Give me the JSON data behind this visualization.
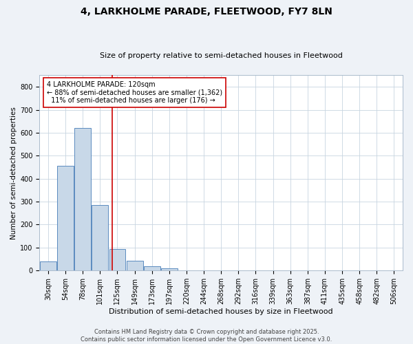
{
  "title": "4, LARKHOLME PARADE, FLEETWOOD, FY7 8LN",
  "subtitle": "Size of property relative to semi-detached houses in Fleetwood",
  "xlabel": "Distribution of semi-detached houses by size in Fleetwood",
  "ylabel": "Number of semi-detached properties",
  "categories": [
    "30sqm",
    "54sqm",
    "78sqm",
    "101sqm",
    "125sqm",
    "149sqm",
    "173sqm",
    "197sqm",
    "220sqm",
    "244sqm",
    "268sqm",
    "292sqm",
    "316sqm",
    "339sqm",
    "363sqm",
    "387sqm",
    "411sqm",
    "435sqm",
    "458sqm",
    "482sqm",
    "506sqm"
  ],
  "values": [
    40,
    455,
    620,
    285,
    93,
    42,
    18,
    8,
    0,
    0,
    0,
    0,
    0,
    0,
    0,
    0,
    0,
    0,
    0,
    0,
    0
  ],
  "bar_color": "#c8d8e8",
  "bar_edge_color": "#5a8abf",
  "vline_x": 3.72,
  "vline_color": "#cc0000",
  "annotation_text": "4 LARKHOLME PARADE: 120sqm\n← 88% of semi-detached houses are smaller (1,362)\n  11% of semi-detached houses are larger (176) →",
  "annotation_box_color": "#cc0000",
  "ylim": [
    0,
    850
  ],
  "yticks": [
    0,
    100,
    200,
    300,
    400,
    500,
    600,
    700,
    800
  ],
  "footer_line1": "Contains HM Land Registry data © Crown copyright and database right 2025.",
  "footer_line2": "Contains public sector information licensed under the Open Government Licence v3.0.",
  "bg_color": "#eef2f7",
  "plot_bg_color": "#ffffff",
  "grid_color": "#c8d4e0",
  "title_fontsize": 10,
  "subtitle_fontsize": 8,
  "xlabel_fontsize": 8,
  "ylabel_fontsize": 7.5,
  "tick_fontsize": 7,
  "annotation_fontsize": 7,
  "footer_fontsize": 6
}
